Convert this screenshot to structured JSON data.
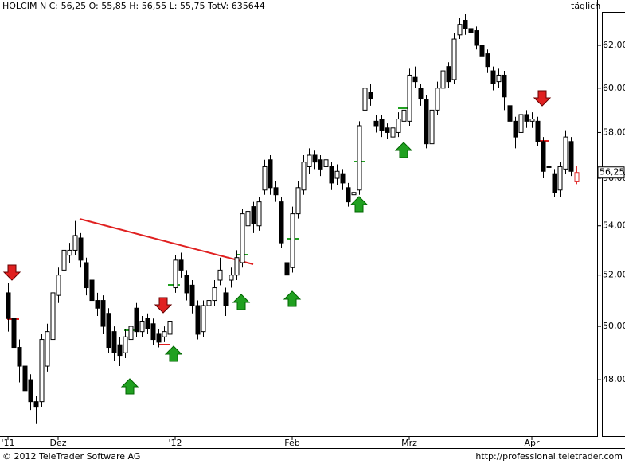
{
  "chart_data": {
    "type": "candlestick",
    "header": "HOLCIM N C: 56,25 O: 55,85 H: 56,55 L: 55,75 TotV: 635644",
    "interval": "täglich",
    "footer_left": "© 2012 TeleTrader Software AG",
    "footer_right": "http://professional.teletrader.com",
    "categories": [
      "'11",
      null,
      null,
      null,
      null,
      null,
      null,
      null,
      null,
      "Dez",
      null,
      null,
      null,
      null,
      null,
      null,
      null,
      null,
      null,
      null,
      null,
      null,
      null,
      null,
      null,
      null,
      null,
      null,
      null,
      null,
      "'12",
      null,
      null,
      null,
      null,
      null,
      null,
      null,
      null,
      null,
      null,
      null,
      null,
      null,
      null,
      null,
      null,
      null,
      null,
      null,
      null,
      "Feb",
      null,
      null,
      null,
      null,
      null,
      null,
      null,
      null,
      null,
      null,
      null,
      null,
      null,
      null,
      null,
      null,
      null,
      null,
      null,
      null,
      "Mrz",
      null,
      null,
      null,
      null,
      null,
      null,
      null,
      null,
      null,
      null,
      null,
      null,
      null,
      null,
      null,
      null,
      null,
      null,
      null,
      null,
      null,
      "Apr",
      null,
      null,
      null,
      null,
      null,
      null,
      null,
      null
    ],
    "open": [
      51.3,
      50.3,
      49.2,
      48.5,
      48.0,
      47.2,
      47.2,
      48.5,
      49.5,
      51.2,
      52.2,
      52.8,
      53.0,
      53.5,
      52.5,
      51.8,
      51.0,
      51.0,
      50.5,
      49.8,
      49.3,
      49.0,
      49.5,
      50.7,
      49.8,
      50.3,
      50.1,
      49.7,
      49.6,
      49.7,
      51.5,
      52.6,
      52.0,
      51.6,
      50.8,
      49.8,
      50.8,
      51.0,
      51.8,
      51.3,
      51.8,
      52.0,
      52.5,
      54.0,
      54.8,
      54.0,
      55.5,
      56.8,
      55.6,
      55.0,
      52.5,
      52.3,
      54.5,
      55.5,
      56.5,
      57.0,
      56.8,
      56.5,
      56.5,
      56.0,
      56.2,
      55.6,
      55.3,
      55.5,
      59.0,
      59.8,
      58.5,
      58.6,
      58.2,
      57.8,
      58.0,
      58.5,
      58.5,
      60.5,
      60.0,
      59.5,
      57.5,
      59.0,
      60.0,
      61.0,
      60.4,
      62.5,
      63.2,
      62.8,
      62.7,
      62.0,
      61.6,
      60.8,
      60.3,
      60.6,
      59.2,
      58.5,
      58.0,
      58.8,
      58.5,
      58.5,
      57.6,
      56.5,
      56.2,
      55.5,
      56.4,
      57.6,
      55.85
    ],
    "high": [
      51.7,
      50.5,
      49.5,
      48.8,
      48.2,
      47.4,
      49.7,
      50.1,
      51.6,
      52.3,
      53.4,
      53.3,
      54.2,
      53.7,
      52.7,
      52.0,
      51.3,
      51.2,
      50.7,
      50.0,
      49.6,
      49.9,
      50.5,
      50.9,
      50.4,
      50.5,
      50.3,
      49.9,
      50.0,
      50.4,
      52.8,
      52.9,
      52.2,
      51.8,
      51.0,
      51.0,
      51.2,
      51.8,
      52.7,
      51.5,
      52.3,
      53.0,
      54.7,
      54.9,
      55.0,
      55.2,
      56.8,
      57.0,
      55.9,
      55.2,
      52.8,
      54.8,
      55.9,
      57.0,
      57.3,
      57.2,
      57.0,
      57.1,
      56.7,
      56.6,
      56.4,
      55.8,
      55.6,
      58.5,
      60.3,
      60.2,
      58.8,
      58.8,
      58.4,
      58.5,
      58.9,
      59.3,
      60.9,
      61.0,
      60.2,
      59.7,
      59.3,
      60.3,
      61.1,
      61.2,
      62.6,
      63.3,
      63.5,
      63.0,
      62.9,
      62.2,
      61.8,
      61.0,
      60.9,
      60.8,
      59.4,
      58.7,
      59.0,
      59.0,
      58.9,
      58.7,
      57.8,
      56.9,
      56.4,
      56.7,
      58.1,
      57.8,
      56.55
    ],
    "low": [
      49.8,
      48.8,
      47.9,
      47.3,
      46.9,
      46.4,
      47.0,
      48.3,
      49.3,
      50.9,
      52.0,
      52.5,
      52.8,
      52.3,
      51.2,
      50.7,
      50.4,
      49.7,
      49.0,
      48.7,
      48.5,
      48.8,
      49.3,
      49.6,
      49.6,
      49.7,
      49.3,
      49.2,
      49.4,
      49.5,
      51.3,
      51.9,
      51.0,
      50.5,
      49.5,
      49.6,
      50.5,
      50.8,
      51.6,
      50.4,
      51.5,
      51.8,
      52.3,
      53.8,
      53.7,
      53.8,
      55.3,
      55.3,
      55.0,
      53.1,
      51.8,
      52.1,
      54.3,
      55.3,
      56.2,
      56.4,
      56.1,
      56.2,
      55.5,
      55.7,
      55.5,
      54.8,
      53.6,
      55.3,
      58.8,
      59.2,
      58.0,
      57.8,
      57.7,
      57.6,
      57.8,
      58.2,
      58.3,
      60.0,
      59.2,
      57.3,
      57.3,
      58.8,
      59.8,
      60.0,
      60.2,
      62.3,
      62.5,
      62.3,
      61.8,
      61.2,
      60.7,
      59.9,
      60.0,
      59.0,
      58.2,
      57.3,
      57.8,
      58.2,
      58.2,
      57.4,
      56.0,
      56.2,
      55.2,
      55.2,
      56.2,
      56.1,
      55.75
    ],
    "close": [
      50.3,
      49.2,
      48.5,
      47.6,
      47.2,
      47.0,
      49.5,
      49.8,
      51.3,
      52.0,
      53.0,
      53.0,
      53.6,
      52.6,
      51.5,
      51.0,
      50.7,
      50.0,
      49.2,
      49.0,
      48.9,
      49.6,
      50.0,
      49.8,
      50.2,
      49.9,
      49.5,
      49.4,
      49.8,
      50.2,
      52.6,
      52.2,
      51.3,
      50.8,
      49.7,
      50.8,
      51.0,
      51.5,
      52.2,
      50.8,
      52.0,
      52.7,
      54.5,
      54.6,
      54.1,
      55.0,
      56.5,
      55.6,
      55.3,
      53.3,
      52.0,
      54.5,
      55.6,
      56.7,
      57.0,
      56.7,
      56.4,
      56.8,
      55.8,
      56.3,
      55.8,
      55.0,
      55.4,
      58.3,
      60.0,
      59.5,
      58.3,
      58.1,
      58.0,
      58.2,
      58.6,
      59.0,
      60.6,
      60.3,
      59.5,
      57.5,
      59.0,
      60.0,
      60.8,
      60.3,
      62.3,
      63.0,
      62.8,
      62.6,
      62.0,
      61.5,
      61.0,
      60.2,
      60.6,
      59.6,
      58.5,
      57.8,
      58.8,
      58.5,
      58.6,
      57.6,
      56.3,
      56.5,
      55.4,
      56.5,
      57.8,
      56.3,
      56.25
    ],
    "up_color": "#ffffff",
    "down_color": "#000000",
    "last_candle_color": "#e03030",
    "last_price": {
      "value": 56.25,
      "label": "56,25"
    },
    "ylim": [
      45.97,
      64.19
    ],
    "log_scale": true,
    "yticks": [
      {
        "value": 48,
        "label": "48,00"
      },
      {
        "value": 50,
        "label": "50,00"
      },
      {
        "value": 52,
        "label": "52,00"
      },
      {
        "value": 54,
        "label": "54,00"
      },
      {
        "value": 56,
        "label": "56,00"
      },
      {
        "value": 58,
        "label": "58,00"
      },
      {
        "value": 60,
        "label": "60,00"
      },
      {
        "value": 62,
        "label": "62,00"
      }
    ]
  }
}
